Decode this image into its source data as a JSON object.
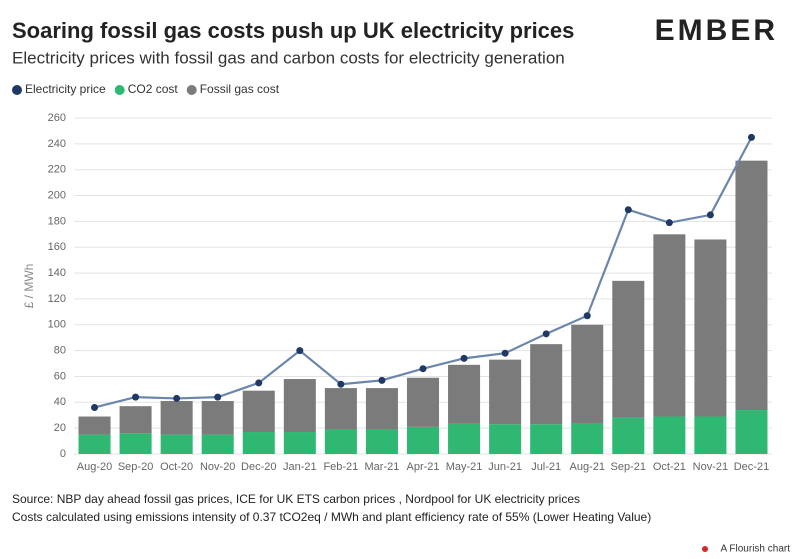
{
  "chart_data": {
    "type": "bar",
    "title": "Soaring fossil gas costs push up UK electricity prices",
    "subtitle": "Electricity prices with fossil gas and carbon costs for electricity generation",
    "logo": "EMBER",
    "y_label": "£ / MWh",
    "categories": [
      "Aug-20",
      "Sep-20",
      "Oct-20",
      "Nov-20",
      "Dec-20",
      "Jan-21",
      "Feb-21",
      "Mar-21",
      "Apr-21",
      "May-21",
      "Jun-21",
      "Jul-21",
      "Aug-21",
      "Sep-21",
      "Oct-21",
      "Nov-21",
      "Dec-21"
    ],
    "series": [
      {
        "name": "Electricity price",
        "type": "line",
        "color": "#1f3864",
        "line_color": "#6a86ad",
        "values": [
          36,
          44,
          43,
          44,
          55,
          80,
          54,
          57,
          66,
          74,
          78,
          93,
          107,
          189,
          179,
          185,
          245
        ]
      },
      {
        "name": "CO2 cost",
        "type": "bar",
        "color": "#2eb872",
        "values": [
          15,
          16,
          15,
          15,
          17,
          17,
          19,
          19,
          21,
          24,
          23,
          23,
          24,
          28,
          29,
          29,
          34
        ]
      },
      {
        "name": "Fossil gas cost",
        "type": "bar",
        "color": "#7b7b7b",
        "values": [
          14,
          21,
          26,
          26,
          32,
          41,
          32,
          32,
          38,
          45,
          50,
          62,
          76,
          106,
          141,
          137,
          193
        ]
      }
    ],
    "ylim": [
      0,
      260
    ],
    "yticks": [
      0,
      20,
      40,
      60,
      80,
      100,
      120,
      140,
      160,
      180,
      200,
      220,
      240,
      260
    ],
    "grid": true,
    "source": [
      "Source: NBP day ahead fossil gas prices, ICE for UK ETS carbon prices , Nordpool for UK electricity prices",
      "Costs calculated using emissions intensity of 0.37 tCO2eq / MWh and plant efficiency rate of 55% (Lower Heating Value)"
    ],
    "footer": "A Flourish chart"
  }
}
